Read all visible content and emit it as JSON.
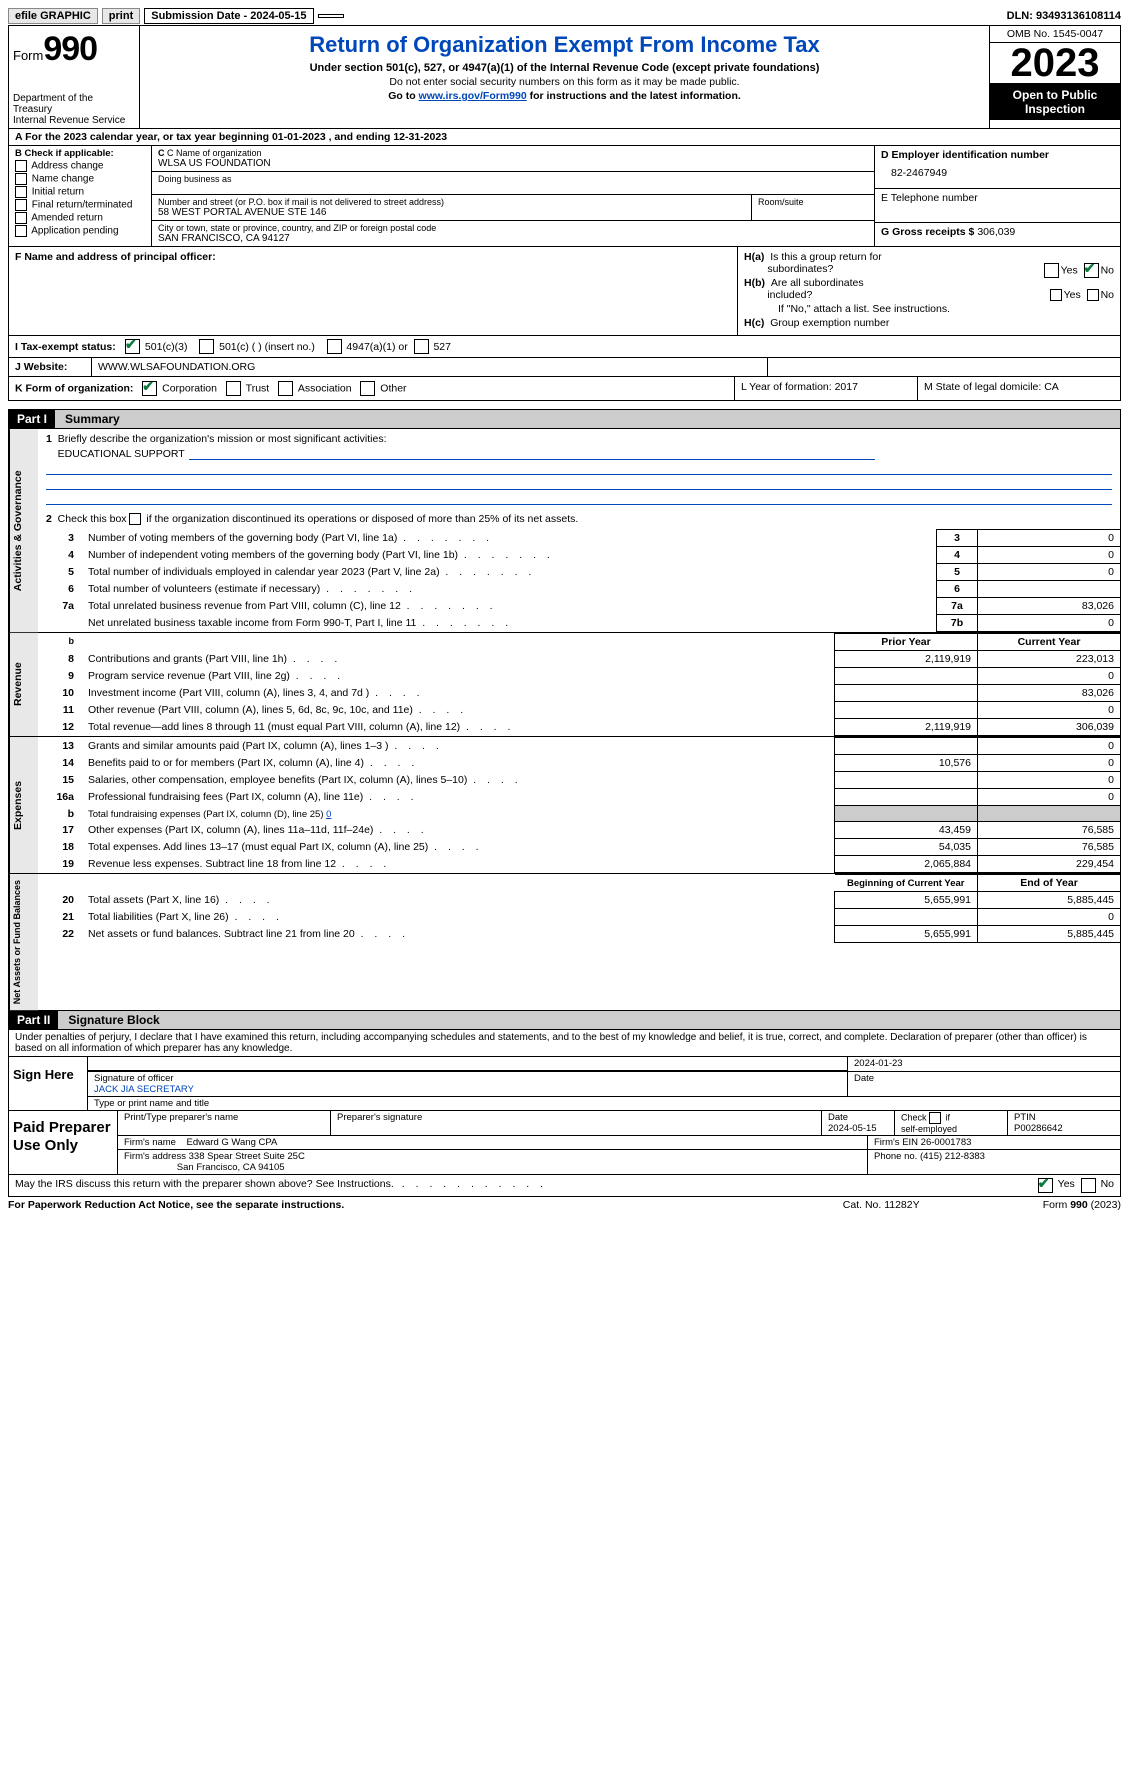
{
  "topbar": {
    "efile": "efile GRAPHIC",
    "print": "print",
    "submission": "Submission Date - 2024-05-15",
    "dln": "DLN: 93493136108114"
  },
  "header": {
    "form_label": "Form",
    "form_num": "990",
    "dept": "Department of the Treasury\nInternal Revenue Service",
    "title": "Return of Organization Exempt From Income Tax",
    "sub": "Under section 501(c), 527, or 4947(a)(1) of the Internal Revenue Code (except private foundations)",
    "line1": "Do not enter social security numbers on this form as it may be made public.",
    "line2_pre": "Go to ",
    "line2_link": "www.irs.gov/Form990",
    "line2_post": " for instructions and the latest information.",
    "omb": "OMB No. 1545-0047",
    "year": "2023",
    "open": "Open to Public Inspection"
  },
  "rowA": {
    "text": "A For the 2023 calendar year, or tax year beginning 01-01-2023    , and ending 12-31-2023"
  },
  "boxB": {
    "title": "B Check if applicable:",
    "opts": [
      "Address change",
      "Name change",
      "Initial return",
      "Final return/terminated",
      "Amended return",
      "Application pending"
    ]
  },
  "boxC": {
    "name_lbl": "C Name of organization",
    "name_val": "WLSA US FOUNDATION",
    "dba_lbl": "Doing business as",
    "addr_lbl": "Number and street (or P.O. box if mail is not delivered to street address)",
    "addr_val": "58 WEST PORTAL AVENUE STE 146",
    "room_lbl": "Room/suite",
    "city_lbl": "City or town, state or province, country, and ZIP or foreign postal code",
    "city_val": "SAN FRANCISCO, CA  94127"
  },
  "boxD": {
    "ein_lbl": "D Employer identification number",
    "ein_val": "82-2467949",
    "tel_lbl": "E Telephone number",
    "gross_lbl": "G Gross receipts $",
    "gross_val": "306,039"
  },
  "boxF": {
    "lbl": "F  Name and address of principal officer:"
  },
  "boxH": {
    "a_lbl": "H(a)  Is this a group return for subordinates?",
    "b_lbl": "H(b)  Are all subordinates included?",
    "b_note": "If \"No,\" attach a list. See instructions.",
    "c_lbl": "H(c)  Group exemption number",
    "yes": "Yes",
    "no": "No"
  },
  "rowI": {
    "lbl": "I   Tax-exempt status:",
    "c3": "501(c)(3)",
    "c_other": "501(c) (  ) (insert no.)",
    "a1": "4947(a)(1) or",
    "s527": "527"
  },
  "rowJ": {
    "lbl": "J  Website:",
    "val": "WWW.WLSAFOUNDATION.ORG"
  },
  "rowK": {
    "lbl": "K Form of organization:",
    "corp": "Corporation",
    "trust": "Trust",
    "assoc": "Association",
    "other": "Other",
    "l": "L Year of formation: 2017",
    "m": "M State of legal domicile: CA"
  },
  "part1": {
    "hdr": "Part I",
    "title": "Summary",
    "vtab_act": "Activities & Governance",
    "vtab_rev": "Revenue",
    "vtab_exp": "Expenses",
    "vtab_net": "Net Assets or Fund Balances",
    "l1_lbl": "Briefly describe the organization's mission or most significant activities:",
    "l1_val": "EDUCATIONAL SUPPORT",
    "l2": "Check this box       if the organization discontinued its operations or disposed of more than 25% of its net assets.",
    "prior": "Prior Year",
    "current": "Current Year",
    "beg": "Beginning of Current Year",
    "end": "End of Year",
    "rows_act": [
      {
        "n": "3",
        "d": "Number of voting members of the governing body (Part VI, line 1a)",
        "b": "3",
        "v": "0"
      },
      {
        "n": "4",
        "d": "Number of independent voting members of the governing body (Part VI, line 1b)",
        "b": "4",
        "v": "0"
      },
      {
        "n": "5",
        "d": "Total number of individuals employed in calendar year 2023 (Part V, line 2a)",
        "b": "5",
        "v": "0"
      },
      {
        "n": "6",
        "d": "Total number of volunteers (estimate if necessary)",
        "b": "6",
        "v": ""
      },
      {
        "n": "7a",
        "d": "Total unrelated business revenue from Part VIII, column (C), line 12",
        "b": "7a",
        "v": "83,026"
      },
      {
        "n": "",
        "d": "Net unrelated business taxable income from Form 990-T, Part I, line 11",
        "b": "7b",
        "v": "0"
      }
    ],
    "rows_rev": [
      {
        "n": "8",
        "d": "Contributions and grants (Part VIII, line 1h)",
        "p": "2,119,919",
        "c": "223,013"
      },
      {
        "n": "9",
        "d": "Program service revenue (Part VIII, line 2g)",
        "p": "",
        "c": "0"
      },
      {
        "n": "10",
        "d": "Investment income (Part VIII, column (A), lines 3, 4, and 7d )",
        "p": "",
        "c": "83,026"
      },
      {
        "n": "11",
        "d": "Other revenue (Part VIII, column (A), lines 5, 6d, 8c, 9c, 10c, and 11e)",
        "p": "",
        "c": "0"
      },
      {
        "n": "12",
        "d": "Total revenue—add lines 8 through 11 (must equal Part VIII, column (A), line 12)",
        "p": "2,119,919",
        "c": "306,039"
      }
    ],
    "rows_exp": [
      {
        "n": "13",
        "d": "Grants and similar amounts paid (Part IX, column (A), lines 1–3 )",
        "p": "",
        "c": "0"
      },
      {
        "n": "14",
        "d": "Benefits paid to or for members (Part IX, column (A), line 4)",
        "p": "10,576",
        "c": "0"
      },
      {
        "n": "15",
        "d": "Salaries, other compensation, employee benefits (Part IX, column (A), lines 5–10)",
        "p": "",
        "c": "0"
      },
      {
        "n": "16a",
        "d": "Professional fundraising fees (Part IX, column (A), line 11e)",
        "p": "",
        "c": "0"
      },
      {
        "n": "b",
        "d": "Total fundraising expenses (Part IX, column (D), line 25) 0",
        "p": "grey",
        "c": "grey"
      },
      {
        "n": "17",
        "d": "Other expenses (Part IX, column (A), lines 11a–11d, 11f–24e)",
        "p": "43,459",
        "c": "76,585"
      },
      {
        "n": "18",
        "d": "Total expenses. Add lines 13–17 (must equal Part IX, column (A), line 25)",
        "p": "54,035",
        "c": "76,585"
      },
      {
        "n": "19",
        "d": "Revenue less expenses. Subtract line 18 from line 12",
        "p": "2,065,884",
        "c": "229,454"
      }
    ],
    "rows_net": [
      {
        "n": "20",
        "d": "Total assets (Part X, line 16)",
        "p": "5,655,991",
        "c": "5,885,445"
      },
      {
        "n": "21",
        "d": "Total liabilities (Part X, line 26)",
        "p": "",
        "c": "0"
      },
      {
        "n": "22",
        "d": "Net assets or fund balances. Subtract line 21 from line 20",
        "p": "5,655,991",
        "c": "5,885,445"
      }
    ]
  },
  "part2": {
    "hdr": "Part II",
    "title": "Signature Block",
    "decl": "Under penalties of perjury, I declare that I have examined this return, including accompanying schedules and statements, and to the best of my knowledge and belief, it is true, correct, and complete. Declaration of preparer (other than officer) is based on all information of which preparer has any knowledge.",
    "sign_here": "Sign Here",
    "sig_officer": "Signature of officer",
    "officer": "JACK JIA  SECRETARY",
    "type_title": "Type or print name and title",
    "date_lbl": "Date",
    "date_val": "2024-01-23",
    "paid": "Paid Preparer Use Only",
    "prep_name_lbl": "Print/Type preparer's name",
    "prep_sig_lbl": "Preparer's signature",
    "prep_date": "2024-05-15",
    "self_emp": "Check        if self-employed",
    "ptin_lbl": "PTIN",
    "ptin_val": "P00286642",
    "firm_name_lbl": "Firm's name",
    "firm_name": "Edward G Wang CPA",
    "firm_ein_lbl": "Firm's EIN",
    "firm_ein": "26-0001783",
    "firm_addr_lbl": "Firm's address",
    "firm_addr1": "338 Spear Street Suite 25C",
    "firm_addr2": "San Francisco, CA  94105",
    "phone_lbl": "Phone no.",
    "phone_val": "(415) 212-8383",
    "discuss": "May the IRS discuss this return with the preparer shown above? See Instructions."
  },
  "footer": {
    "paperwork": "For Paperwork Reduction Act Notice, see the separate instructions.",
    "cat": "Cat. No. 11282Y",
    "form": "Form 990 (2023)"
  }
}
